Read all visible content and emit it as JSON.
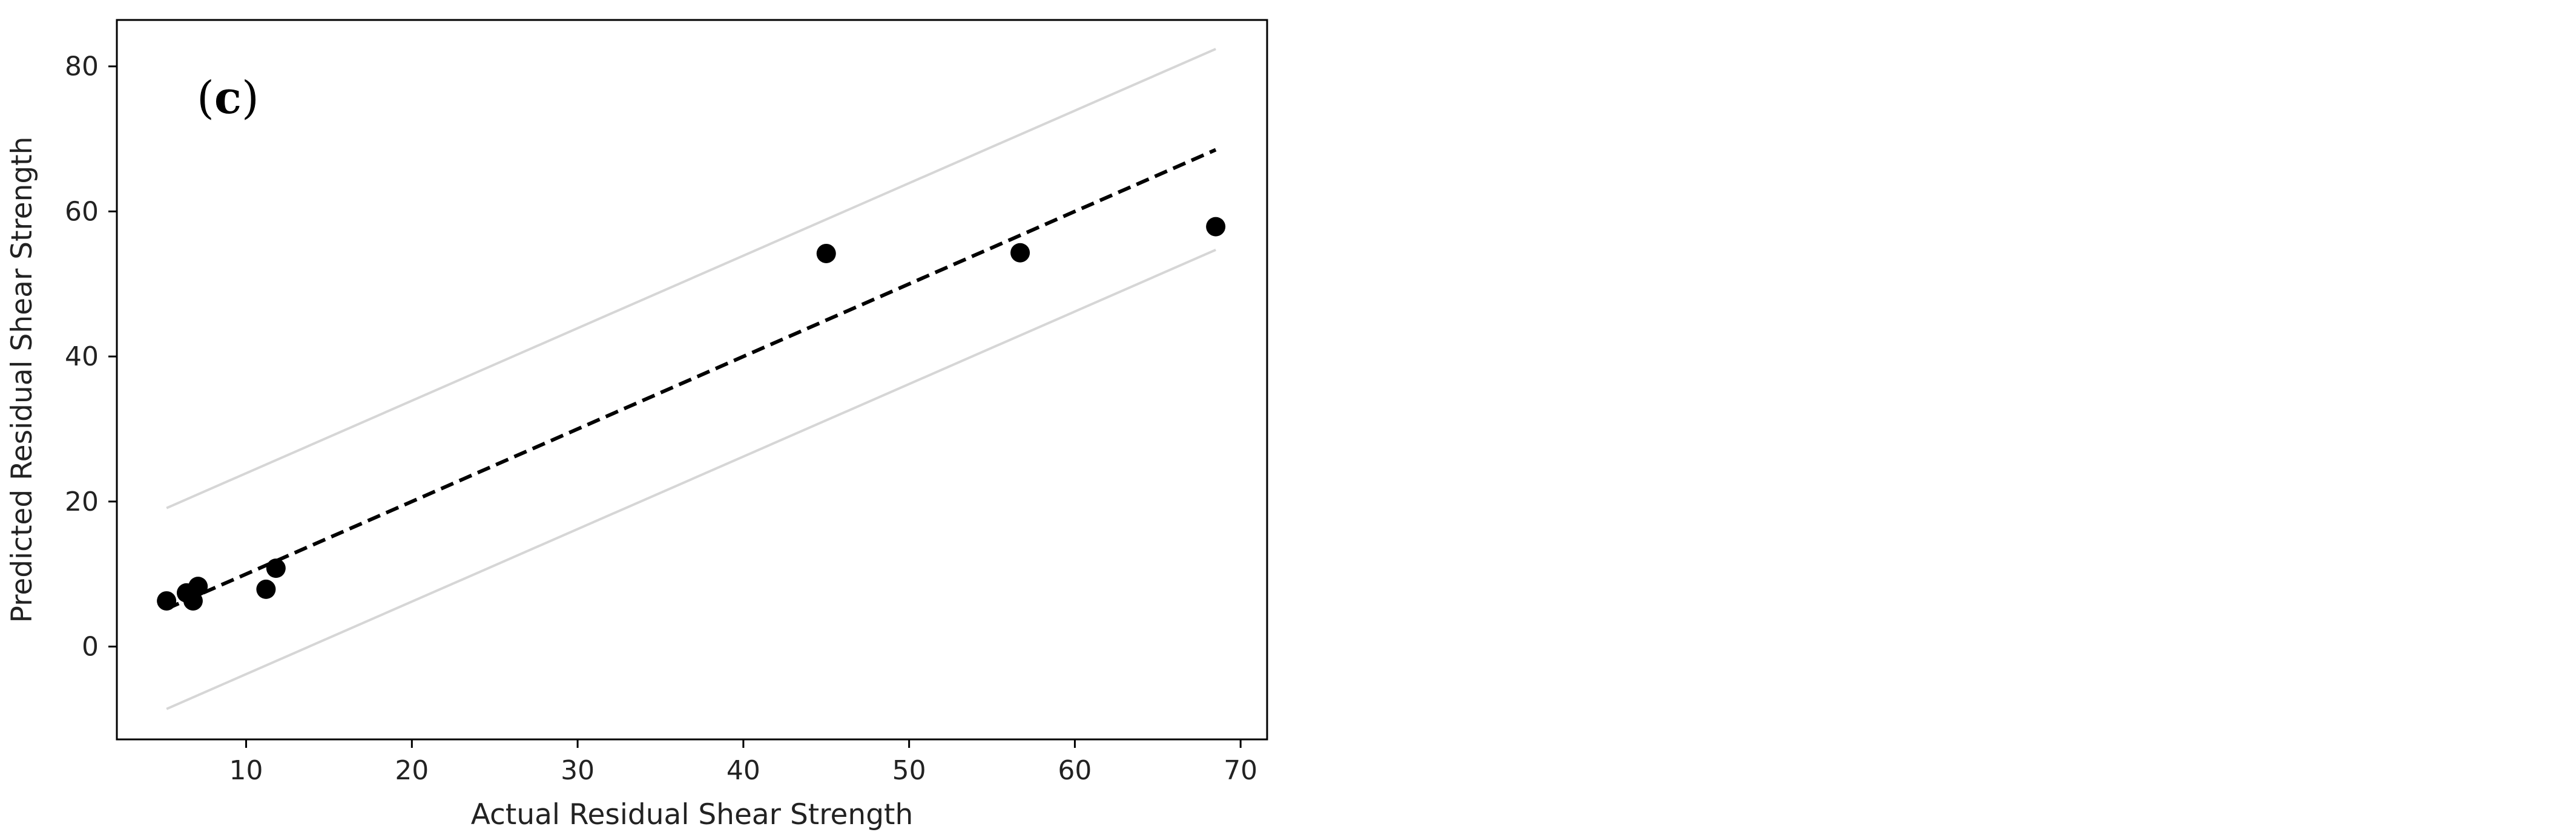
{
  "chart_data": {
    "type": "scatter",
    "panel_label": {
      "open": "(",
      "letter": "c",
      "close": ")"
    },
    "xlabel": "Actual Residual Shear Strength",
    "ylabel": "Predicted Residual Shear Strength",
    "xlim": [
      2.2,
      71.6
    ],
    "ylim": [
      -12.8,
      86.4
    ],
    "x_ticks": [
      10,
      20,
      30,
      40,
      50,
      60,
      70
    ],
    "y_ticks": [
      0,
      20,
      40,
      60,
      80
    ],
    "grid": false,
    "points": {
      "x": [
        5.2,
        6.4,
        6.8,
        7.1,
        11.2,
        11.8,
        45.0,
        56.7,
        68.5
      ],
      "y": [
        6.3,
        7.4,
        6.3,
        8.3,
        7.9,
        10.8,
        54.2,
        54.3,
        57.9
      ],
      "color": "#000000"
    },
    "reference_lines": [
      {
        "style": "dashed",
        "color": "#000000",
        "x": [
          5.2,
          68.5
        ],
        "y": [
          5.2,
          68.5
        ]
      },
      {
        "style": "solid",
        "color": "#d6d6d6",
        "x": [
          5.2,
          68.5
        ],
        "y": [
          19.1,
          82.4
        ]
      },
      {
        "style": "solid",
        "color": "#d6d6d6",
        "x": [
          5.2,
          68.5
        ],
        "y": [
          -8.6,
          54.7
        ]
      }
    ]
  }
}
